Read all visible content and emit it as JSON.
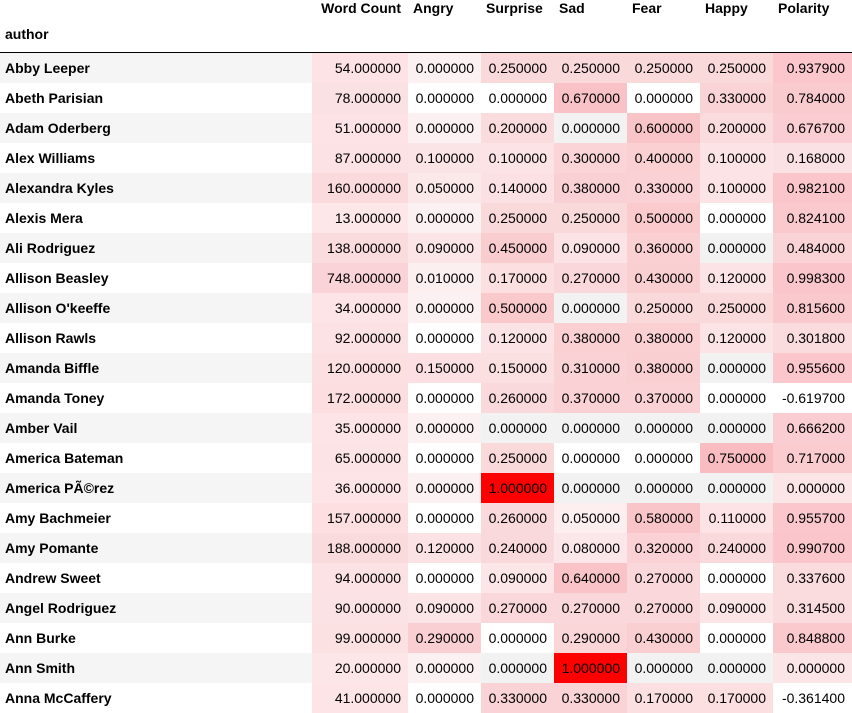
{
  "table": {
    "index_name": "author",
    "columns": [
      "Word Count",
      "Angry",
      "Surprise",
      "Sad",
      "Fear",
      "Happy",
      "Polarity"
    ],
    "rows": [
      {
        "author": "Abby Leeper",
        "values": [
          "54.000000",
          "0.000000",
          "0.250000",
          "0.250000",
          "0.250000",
          "0.250000",
          "0.937900"
        ],
        "bg": [
          "#fde3e5",
          "#fbf1f2",
          "#fad9db",
          "#fad9db",
          "#fad9db",
          "#fad9db",
          "#fbc7cc"
        ]
      },
      {
        "author": "Abeth Parisian",
        "values": [
          "78.000000",
          "0.000000",
          "0.000000",
          "0.670000",
          "0.000000",
          "0.330000",
          "0.784000"
        ],
        "bg": [
          "#fae1e3",
          "#ffffff",
          "#ffffff",
          "#f9c2c6",
          "#ffffff",
          "#fad3d6",
          "#f9cbcf"
        ]
      },
      {
        "author": "Adam Oderberg",
        "values": [
          "51.000000",
          "0.000000",
          "0.200000",
          "0.000000",
          "0.600000",
          "0.200000",
          "0.676700"
        ],
        "bg": [
          "#fde3e5",
          "#fbf1f2",
          "#fadcde",
          "#f2f2f2",
          "#f9c4c8",
          "#fadcde",
          "#f9cdd1"
        ]
      },
      {
        "author": "Alex Williams",
        "values": [
          "87.000000",
          "0.100000",
          "0.100000",
          "0.300000",
          "0.400000",
          "0.100000",
          "0.168000"
        ],
        "bg": [
          "#fce2e4",
          "#fbe4e6",
          "#fce4e6",
          "#fad4d7",
          "#fad0d3",
          "#fce4e6",
          "#fae1e4"
        ]
      },
      {
        "author": "Alexandra Kyles",
        "values": [
          "160.000000",
          "0.050000",
          "0.140000",
          "0.380000",
          "0.330000",
          "0.100000",
          "0.982100"
        ],
        "bg": [
          "#fadadd",
          "#fbe9ea",
          "#fbe1e3",
          "#f9d0d4",
          "#fad2d5",
          "#fce4e6",
          "#fbc6cb"
        ]
      },
      {
        "author": "Alexis Mera",
        "values": [
          "13.000000",
          "0.000000",
          "0.250000",
          "0.250000",
          "0.500000",
          "0.000000",
          "0.824100"
        ],
        "bg": [
          "#fde7e9",
          "#fbf1f2",
          "#fad9db",
          "#fad9db",
          "#facacd",
          "#ffffff",
          "#fac9cd"
        ]
      },
      {
        "author": "Ali Rodriguez",
        "values": [
          "138.000000",
          "0.090000",
          "0.450000",
          "0.090000",
          "0.360000",
          "0.000000",
          "0.484000"
        ],
        "bg": [
          "#fbdcde",
          "#fbe5e7",
          "#f9cdd0",
          "#fce4e6",
          "#fad0d3",
          "#f2f2f2",
          "#fad3d6"
        ]
      },
      {
        "author": "Allison Beasley",
        "values": [
          "748.000000",
          "0.010000",
          "0.170000",
          "0.270000",
          "0.430000",
          "0.120000",
          "0.998300"
        ],
        "bg": [
          "#f9d3d7",
          "#fbeff0",
          "#fbdfe1",
          "#fad7da",
          "#facfd2",
          "#fce3e5",
          "#fbc6cb"
        ]
      },
      {
        "author": "Allison O'keeffe",
        "values": [
          "34.000000",
          "0.000000",
          "0.500000",
          "0.000000",
          "0.250000",
          "0.250000",
          "0.815600"
        ],
        "bg": [
          "#fde5e7",
          "#fbf1f2",
          "#f9c9cc",
          "#f2f2f2",
          "#fad9db",
          "#fad9db",
          "#fac9cd"
        ]
      },
      {
        "author": "Allison Rawls",
        "values": [
          "92.000000",
          "0.000000",
          "0.120000",
          "0.380000",
          "0.380000",
          "0.120000",
          "0.301800"
        ],
        "bg": [
          "#fce2e4",
          "#ffffff",
          "#fce3e5",
          "#fad0d3",
          "#fad0d3",
          "#fce3e5",
          "#fadcdf"
        ]
      },
      {
        "author": "Amanda Biffle",
        "values": [
          "120.000000",
          "0.150000",
          "0.150000",
          "0.310000",
          "0.380000",
          "0.000000",
          "0.955600"
        ],
        "bg": [
          "#fcdfe1",
          "#fbdfe2",
          "#fbe0e2",
          "#f9d2d5",
          "#f9cfd2",
          "#f2f2f2",
          "#fbc7cc"
        ]
      },
      {
        "author": "Amanda Toney",
        "values": [
          "172.000000",
          "0.000000",
          "0.260000",
          "0.370000",
          "0.370000",
          "0.000000",
          "-0.619700"
        ],
        "bg": [
          "#fcdde0",
          "#ffffff",
          "#fad9dc",
          "#fad1d4",
          "#fad1d4",
          "#ffffff",
          "#ffffff"
        ]
      },
      {
        "author": "Amber Vail",
        "values": [
          "35.000000",
          "0.000000",
          "0.000000",
          "0.000000",
          "0.000000",
          "0.000000",
          "0.666200"
        ],
        "bg": [
          "#fde5e7",
          "#fbf1f2",
          "#f2f2f2",
          "#f2f2f2",
          "#f2f2f2",
          "#f2f2f2",
          "#f9cdd1"
        ]
      },
      {
        "author": "America Bateman",
        "values": [
          "65.000000",
          "0.000000",
          "0.250000",
          "0.000000",
          "0.000000",
          "0.750000",
          "0.717000"
        ],
        "bg": [
          "#fce3e5",
          "#ffffff",
          "#fad9db",
          "#ffffff",
          "#ffffff",
          "#f9bcc1",
          "#faccd0"
        ]
      },
      {
        "author": "America PÃ©rez",
        "values": [
          "36.000000",
          "0.000000",
          "1.000000",
          "0.000000",
          "0.000000",
          "0.000000",
          "0.000000"
        ],
        "bg": [
          "#fde5e7",
          "#fbf1f2",
          "#ff0000",
          "#f2f2f2",
          "#f2f2f2",
          "#f2f2f2",
          "#fbe5e7"
        ]
      },
      {
        "author": "Amy Bachmeier",
        "values": [
          "157.000000",
          "0.000000",
          "0.260000",
          "0.050000",
          "0.580000",
          "0.110000",
          "0.955700"
        ],
        "bg": [
          "#fddfe1",
          "#ffffff",
          "#fad9dc",
          "#fdeef0",
          "#f9c5c9",
          "#fde3e5",
          "#fbc7cc"
        ]
      },
      {
        "author": "Amy Pomante",
        "values": [
          "188.000000",
          "0.120000",
          "0.240000",
          "0.080000",
          "0.320000",
          "0.240000",
          "0.990700"
        ],
        "bg": [
          "#fadbdd",
          "#fbe2e4",
          "#fad9dc",
          "#fbe7e9",
          "#fad2d5",
          "#fad9dc",
          "#fbc6cb"
        ]
      },
      {
        "author": "Andrew Sweet",
        "values": [
          "94.000000",
          "0.000000",
          "0.090000",
          "0.640000",
          "0.270000",
          "0.000000",
          "0.337600"
        ],
        "bg": [
          "#fce2e4",
          "#ffffff",
          "#fce6e8",
          "#f9c3c7",
          "#fad7da",
          "#ffffff",
          "#fadbde"
        ]
      },
      {
        "author": "Angel Rodriguez",
        "values": [
          "90.000000",
          "0.090000",
          "0.270000",
          "0.270000",
          "0.270000",
          "0.090000",
          "0.314500"
        ],
        "bg": [
          "#fbe2e4",
          "#fbe5e7",
          "#fad7da",
          "#fad7da",
          "#fad7da",
          "#fbe5e7",
          "#fadcdf"
        ]
      },
      {
        "author": "Ann Burke",
        "values": [
          "99.000000",
          "0.290000",
          "0.000000",
          "0.290000",
          "0.430000",
          "0.000000",
          "0.848800"
        ],
        "bg": [
          "#fce1e3",
          "#facfd3",
          "#ffffff",
          "#fad6d9",
          "#facfd2",
          "#ffffff",
          "#fac9cd"
        ]
      },
      {
        "author": "Ann Smith",
        "values": [
          "20.000000",
          "0.000000",
          "0.000000",
          "1.000000",
          "0.000000",
          "0.000000",
          "0.000000"
        ],
        "bg": [
          "#fde6e8",
          "#fbf1f2",
          "#f2f2f2",
          "#ff0000",
          "#f2f2f2",
          "#f2f2f2",
          "#fbe5e7"
        ]
      },
      {
        "author": "Anna McCaffery",
        "values": [
          "41.000000",
          "0.000000",
          "0.330000",
          "0.330000",
          "0.170000",
          "0.170000",
          "-0.361400"
        ],
        "bg": [
          "#fde5e7",
          "#ffffff",
          "#fad3d6",
          "#fad3d6",
          "#fbdfe1",
          "#fbdfe1",
          "#ffffff"
        ]
      }
    ]
  }
}
